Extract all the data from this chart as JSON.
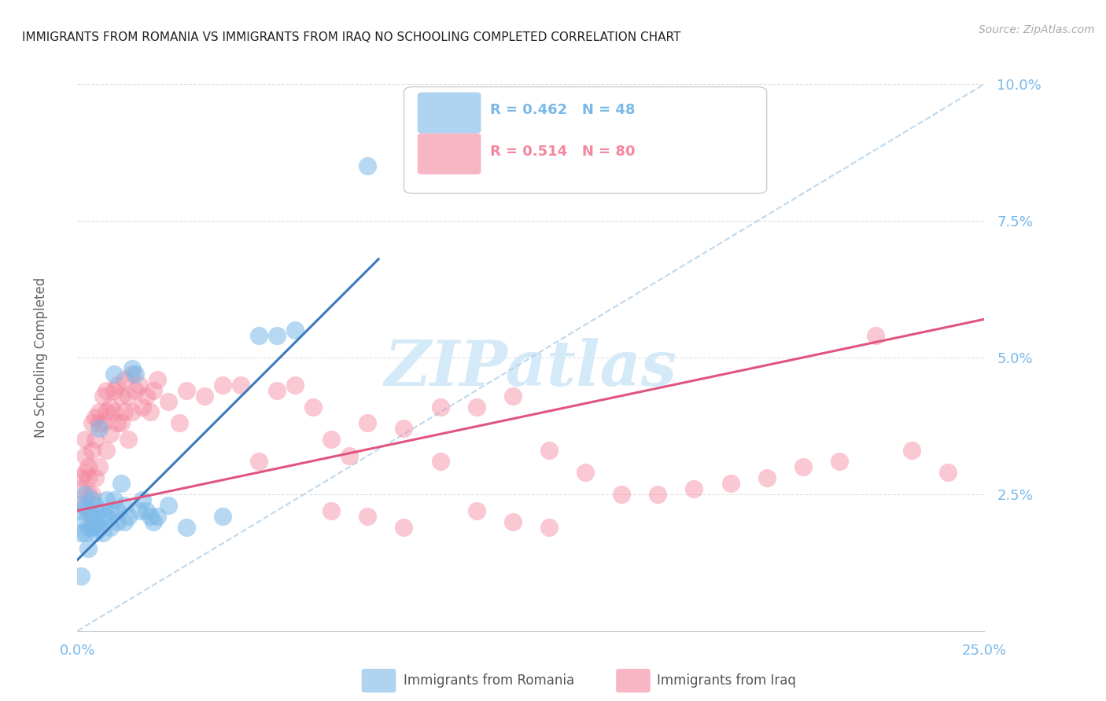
{
  "title": "IMMIGRANTS FROM ROMANIA VS IMMIGRANTS FROM IRAQ NO SCHOOLING COMPLETED CORRELATION CHART",
  "source": "Source: ZipAtlas.com",
  "ylabel": "No Schooling Completed",
  "xlim": [
    0.0,
    0.25
  ],
  "ylim": [
    0.0,
    0.1
  ],
  "xticks": [
    0.0,
    0.05,
    0.1,
    0.15,
    0.2,
    0.25
  ],
  "yticks": [
    0.025,
    0.05,
    0.075,
    0.1
  ],
  "ytick_labels": [
    "2.5%",
    "5.0%",
    "7.5%",
    "10.0%"
  ],
  "xtick_labels": [
    "0.0%",
    "",
    "",
    "",
    "",
    "25.0%"
  ],
  "romania_color": "#7ab8e8",
  "iraq_color": "#f4869e",
  "romania_line_color": "#3a7abf",
  "iraq_line_color": "#e05580",
  "diag_color": "#b8d4ea",
  "background_color": "#ffffff",
  "grid_color": "#e0e0e0",
  "axis_tick_color": "#7ab8e8",
  "watermark_color": "#d5eaf8",
  "title_color": "#222222",
  "source_color": "#aaaaaa",
  "ylabel_color": "#666666",
  "bottom_legend_color": "#555555",
  "romania_trend_x0": 0.0,
  "romania_trend_y0": 0.013,
  "romania_trend_x1": 0.083,
  "romania_trend_y1": 0.068,
  "iraq_trend_x0": 0.0,
  "iraq_trend_y0": 0.022,
  "iraq_trend_x1": 0.25,
  "iraq_trend_y1": 0.057,
  "romania_scatter_x": [
    0.001,
    0.001,
    0.001,
    0.002,
    0.002,
    0.002,
    0.002,
    0.003,
    0.003,
    0.003,
    0.004,
    0.004,
    0.004,
    0.005,
    0.005,
    0.005,
    0.006,
    0.006,
    0.006,
    0.007,
    0.007,
    0.008,
    0.008,
    0.009,
    0.009,
    0.01,
    0.01,
    0.011,
    0.011,
    0.012,
    0.013,
    0.013,
    0.014,
    0.015,
    0.016,
    0.017,
    0.018,
    0.019,
    0.02,
    0.021,
    0.022,
    0.025,
    0.03,
    0.04,
    0.05,
    0.055,
    0.06,
    0.08
  ],
  "romania_scatter_y": [
    0.018,
    0.022,
    0.01,
    0.02,
    0.023,
    0.018,
    0.025,
    0.022,
    0.019,
    0.015,
    0.021,
    0.024,
    0.019,
    0.023,
    0.02,
    0.018,
    0.037,
    0.022,
    0.019,
    0.021,
    0.018,
    0.024,
    0.021,
    0.022,
    0.019,
    0.047,
    0.024,
    0.022,
    0.02,
    0.027,
    0.023,
    0.02,
    0.021,
    0.048,
    0.047,
    0.022,
    0.024,
    0.022,
    0.021,
    0.02,
    0.021,
    0.023,
    0.019,
    0.021,
    0.054,
    0.054,
    0.055,
    0.085
  ],
  "iraq_scatter_x": [
    0.001,
    0.001,
    0.001,
    0.002,
    0.002,
    0.002,
    0.003,
    0.003,
    0.003,
    0.004,
    0.004,
    0.004,
    0.005,
    0.005,
    0.005,
    0.006,
    0.006,
    0.006,
    0.007,
    0.007,
    0.008,
    0.008,
    0.008,
    0.009,
    0.009,
    0.01,
    0.01,
    0.011,
    0.011,
    0.012,
    0.012,
    0.013,
    0.013,
    0.014,
    0.014,
    0.015,
    0.015,
    0.016,
    0.017,
    0.018,
    0.019,
    0.02,
    0.021,
    0.022,
    0.025,
    0.028,
    0.03,
    0.035,
    0.04,
    0.045,
    0.05,
    0.055,
    0.06,
    0.065,
    0.07,
    0.075,
    0.08,
    0.09,
    0.1,
    0.11,
    0.12,
    0.13,
    0.14,
    0.15,
    0.16,
    0.17,
    0.18,
    0.19,
    0.2,
    0.21,
    0.22,
    0.23,
    0.24,
    0.07,
    0.08,
    0.09,
    0.1,
    0.11,
    0.12,
    0.13
  ],
  "iraq_scatter_y": [
    0.026,
    0.023,
    0.028,
    0.032,
    0.029,
    0.035,
    0.03,
    0.028,
    0.025,
    0.038,
    0.033,
    0.025,
    0.039,
    0.035,
    0.028,
    0.04,
    0.038,
    0.03,
    0.043,
    0.038,
    0.044,
    0.04,
    0.033,
    0.041,
    0.036,
    0.044,
    0.04,
    0.045,
    0.038,
    0.043,
    0.038,
    0.046,
    0.04,
    0.043,
    0.035,
    0.047,
    0.04,
    0.044,
    0.045,
    0.041,
    0.043,
    0.04,
    0.044,
    0.046,
    0.042,
    0.038,
    0.044,
    0.043,
    0.045,
    0.045,
    0.031,
    0.044,
    0.045,
    0.041,
    0.035,
    0.032,
    0.038,
    0.037,
    0.041,
    0.041,
    0.043,
    0.033,
    0.029,
    0.025,
    0.025,
    0.026,
    0.027,
    0.028,
    0.03,
    0.031,
    0.054,
    0.033,
    0.029,
    0.022,
    0.021,
    0.019,
    0.031,
    0.022,
    0.02,
    0.019
  ]
}
